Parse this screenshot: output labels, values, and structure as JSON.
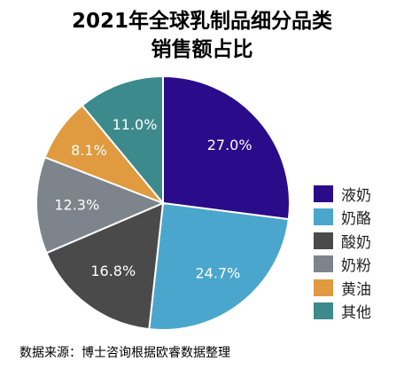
{
  "chart_data": {
    "type": "pie",
    "title": "2021年全球乳制品细分品类销售额占比",
    "title_lines": [
      "2021年全球乳制品细分品类",
      "销售额占比"
    ],
    "categories": [
      "液奶",
      "奶酪",
      "酸奶",
      "奶粉",
      "黄油",
      "其他"
    ],
    "values": [
      27.0,
      24.7,
      16.8,
      12.3,
      8.1,
      11.0
    ],
    "labels": [
      "27.0%",
      "24.7%",
      "16.8%",
      "12.3%",
      "8.1%",
      "11.0%"
    ],
    "colors": [
      "#2a0c8a",
      "#4aa6cc",
      "#4a4a4a",
      "#7e848b",
      "#e09a3f",
      "#3d8a8c"
    ],
    "start_angle": "12 o'clock",
    "direction": "clockwise",
    "legend_position": "right",
    "source": "数据来源：博士咨询根据欧睿数据整理"
  }
}
